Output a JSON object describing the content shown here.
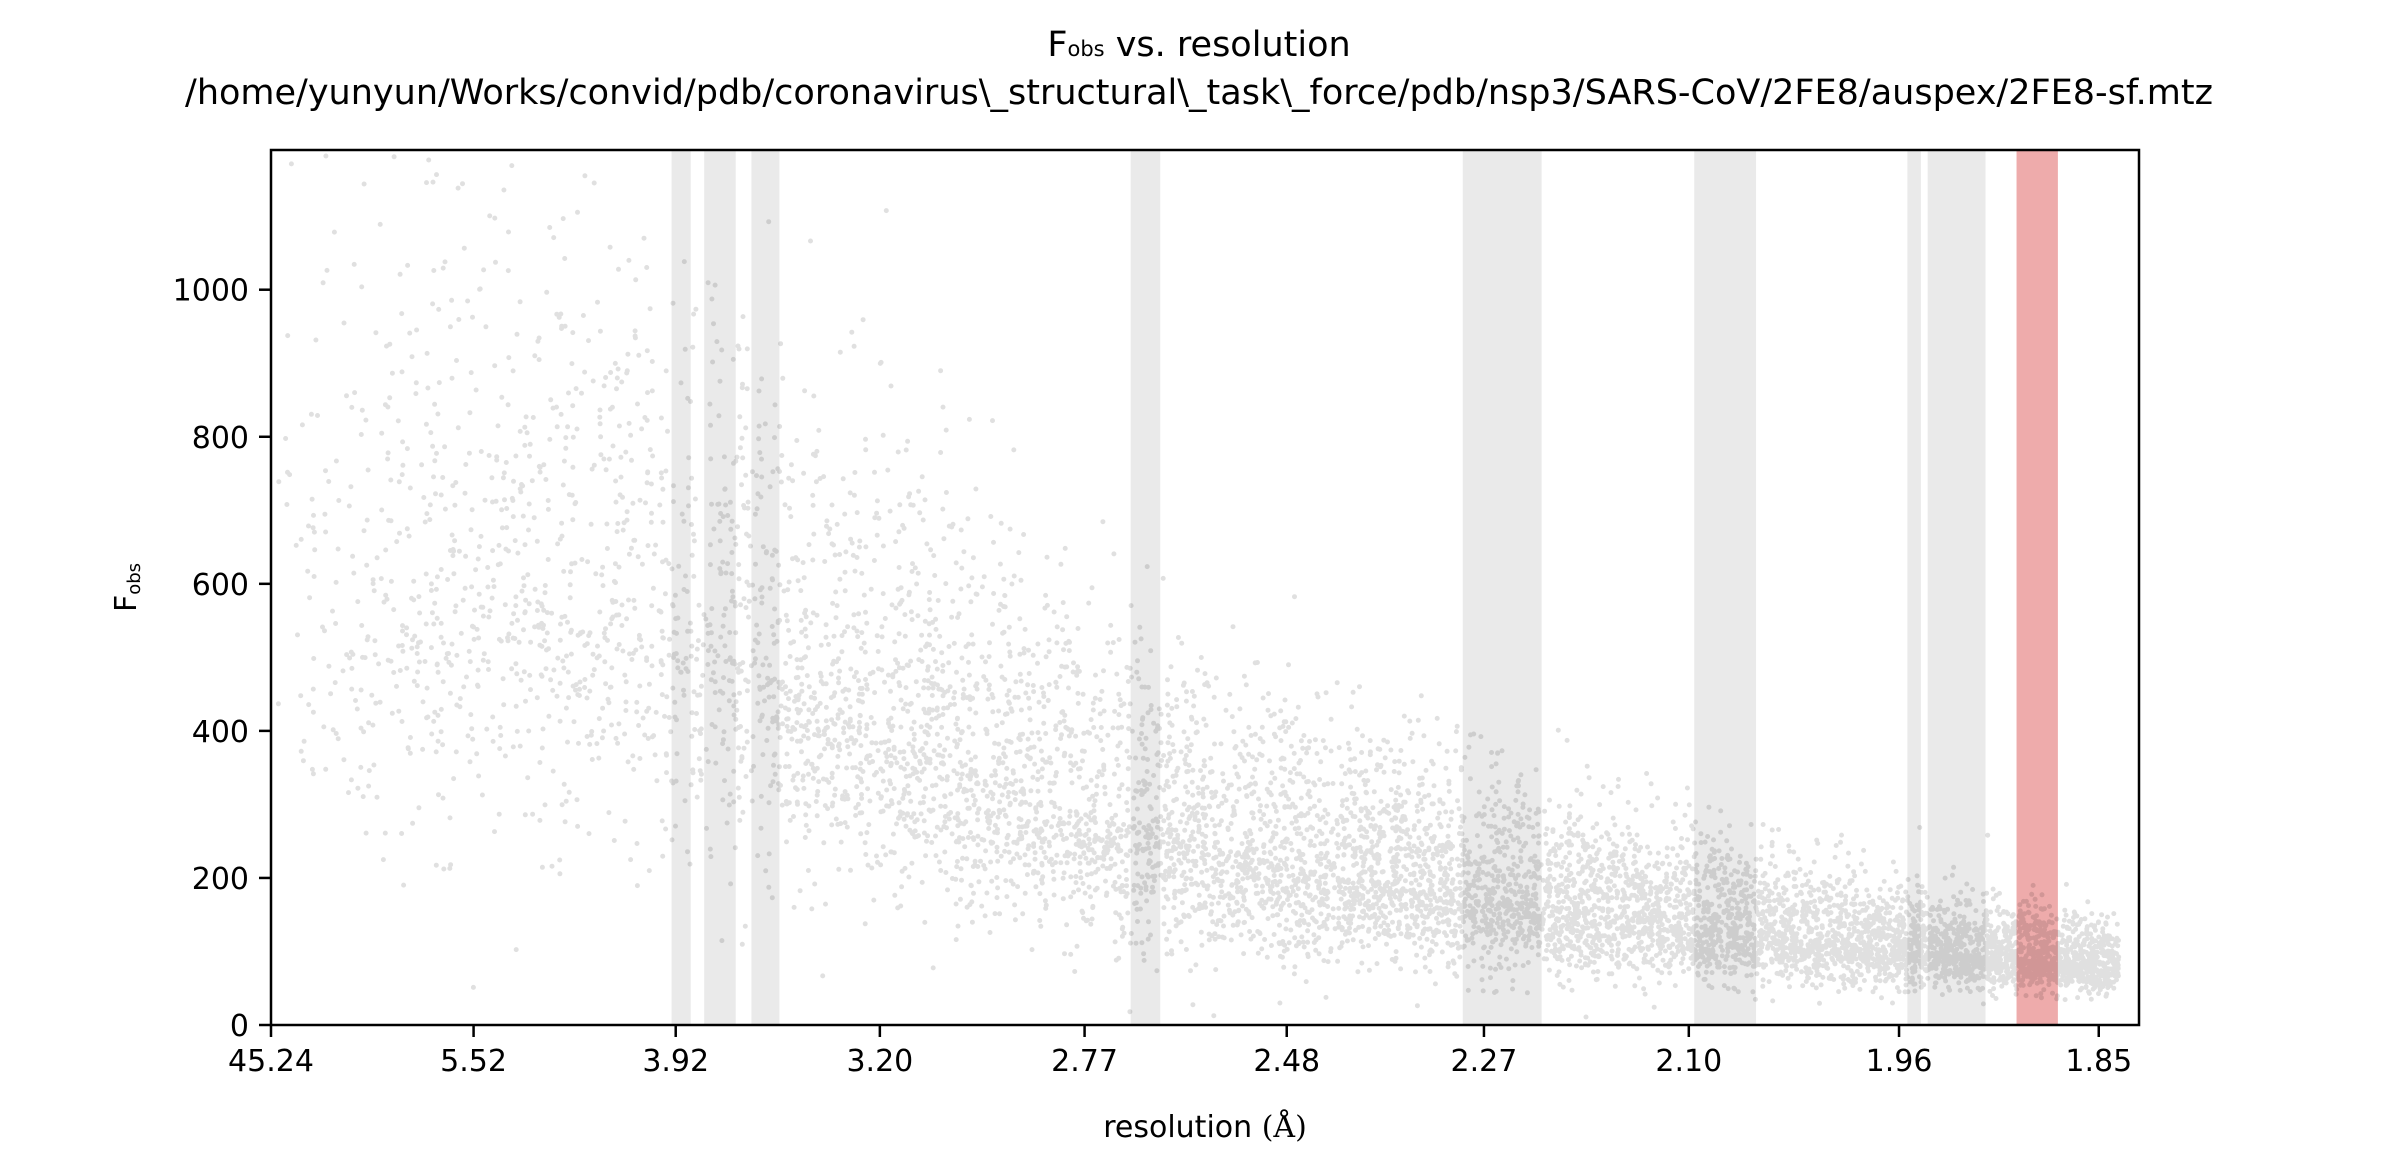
{
  "chart_data": {
    "type": "scatter",
    "title": {
      "main": "F",
      "main_sub": "obs",
      "main_suffix": " vs. resolution",
      "path": "/home/yunyun/Works/convid/pdb/coronavirus\\_structural\\_task\\_force/pdb/nsp3/SARS-CoV/2FE8/auspex/2FE8-sf.mtz"
    },
    "xlabel": "resolution",
    "xlabel_unit": "(Å)",
    "ylabel": "F",
    "ylabel_sub": "obs",
    "x_scale": "1/d^2",
    "x_ticks": [
      "45.24",
      "5.52",
      "3.92",
      "3.20",
      "2.77",
      "2.48",
      "2.27",
      "2.10",
      "1.96",
      "1.85"
    ],
    "y_ticks": [
      "0",
      "200",
      "400",
      "600",
      "800",
      "1000"
    ],
    "ylim": [
      0,
      1190
    ],
    "xlim_resolution": [
      45.24,
      1.83
    ],
    "grid": false,
    "ice_ring_bands_resolution": [
      [
        3.94,
        3.85
      ],
      [
        3.79,
        3.66
      ],
      [
        3.6,
        3.5
      ],
      [
        2.695,
        2.65
      ],
      [
        2.29,
        2.218
      ],
      [
        2.096,
        2.052
      ],
      [
        1.955,
        1.947
      ],
      [
        1.943,
        1.91
      ],
      [
        1.893,
        1.871
      ]
    ],
    "band_colors": {
      "normal": "#d9d9d9",
      "flagged": "#e37777"
    },
    "flagged_band_index": 8,
    "point_color": "#000000",
    "density_profile": [
      {
        "resolution": 45.24,
        "median_fobs": 560,
        "spread": 310
      },
      {
        "resolution": 5.52,
        "median_fobs": 600,
        "spread": 300
      },
      {
        "resolution": 3.92,
        "median_fobs": 540,
        "spread": 260
      },
      {
        "resolution": 3.2,
        "median_fobs": 400,
        "spread": 200
      },
      {
        "resolution": 2.77,
        "median_fobs": 290,
        "spread": 150
      },
      {
        "resolution": 2.48,
        "median_fobs": 220,
        "spread": 110
      },
      {
        "resolution": 2.27,
        "median_fobs": 175,
        "spread": 85
      },
      {
        "resolution": 2.1,
        "median_fobs": 135,
        "spread": 62
      },
      {
        "resolution": 1.96,
        "median_fobs": 105,
        "spread": 45
      },
      {
        "resolution": 1.85,
        "median_fobs": 80,
        "spread": 30
      }
    ]
  }
}
